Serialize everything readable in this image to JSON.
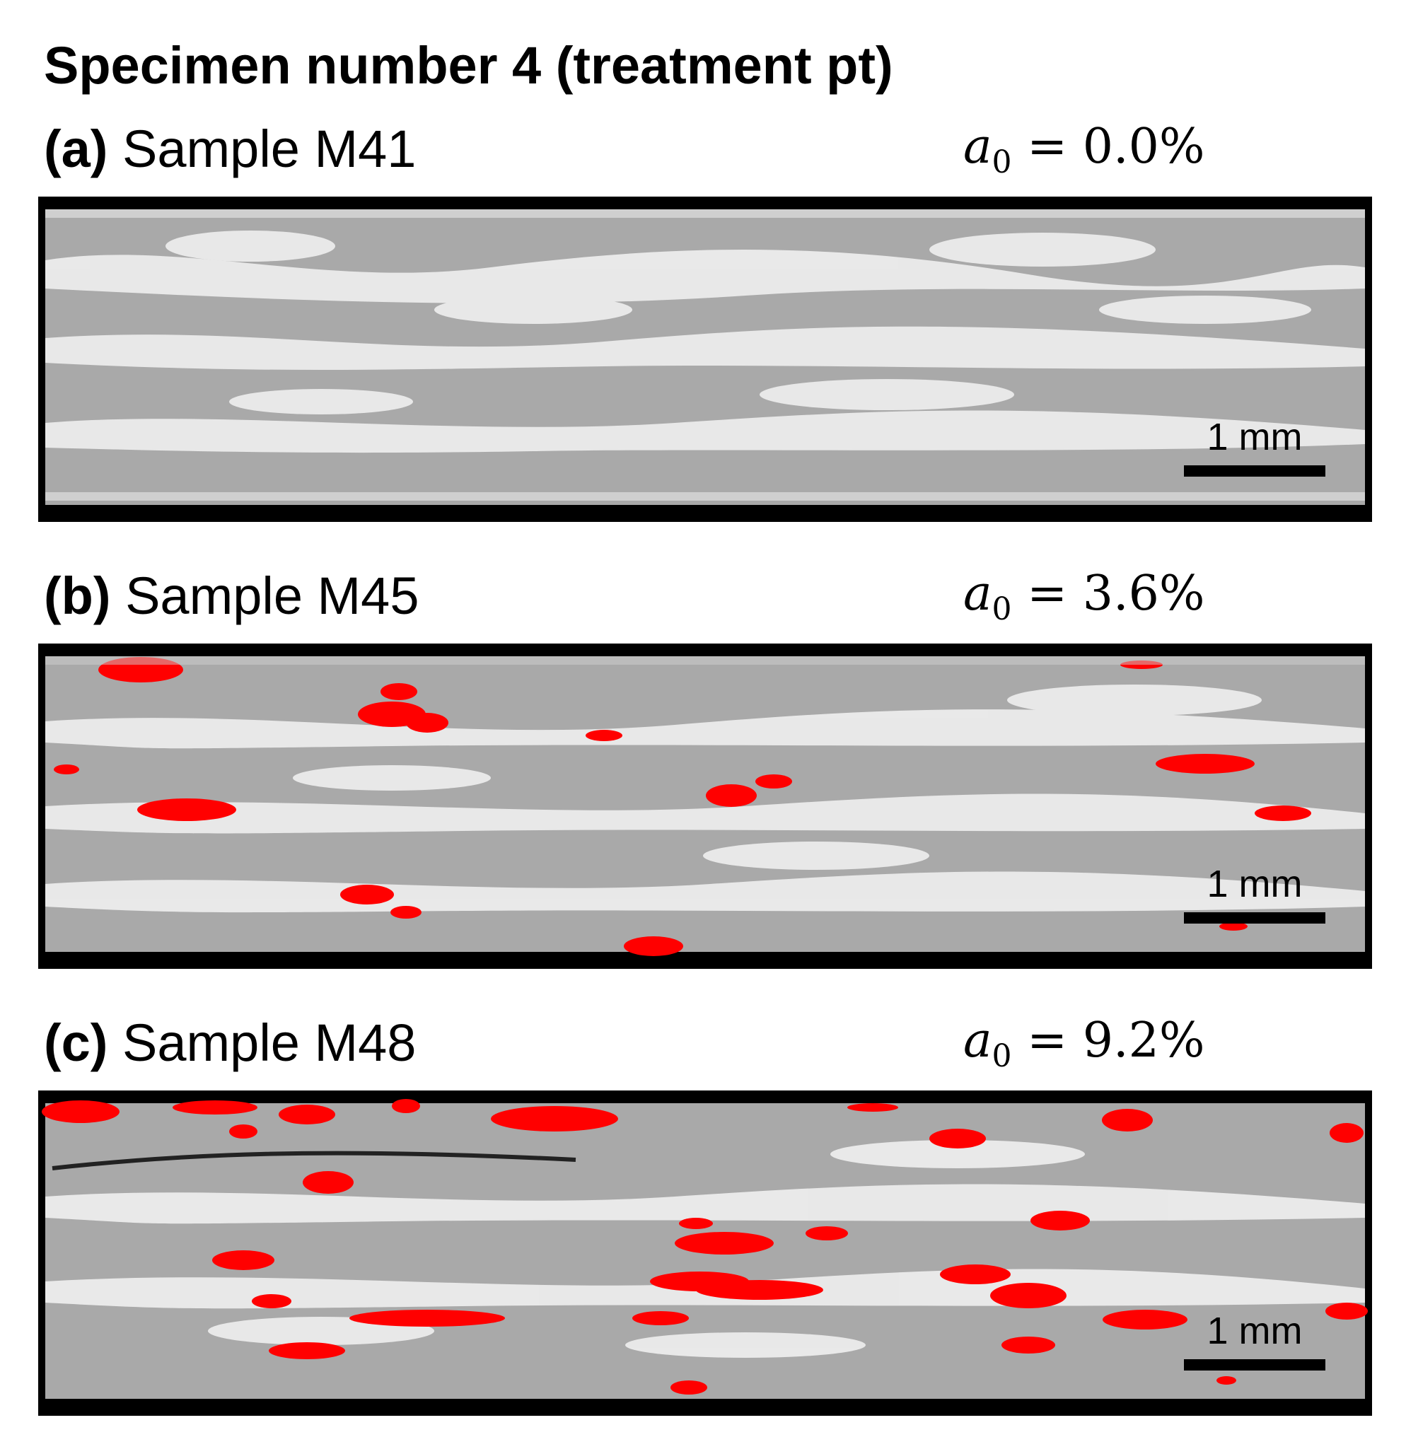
{
  "title": "Specimen number 4 (treatment pt)",
  "panels": [
    {
      "letter": "(a)",
      "sample": "Sample M41",
      "a0_symbol": "a",
      "a0_sub": "0",
      "a0_value": "= 0.0%",
      "scale": "1 mm"
    },
    {
      "letter": "(b)",
      "sample": "Sample M45",
      "a0_symbol": "a",
      "a0_sub": "0",
      "a0_value": "= 3.6%",
      "scale": "1 mm"
    },
    {
      "letter": "(c)",
      "sample": "Sample M48",
      "a0_symbol": "a",
      "a0_sub": "0",
      "a0_value": "= 9.2%",
      "scale": "1 mm"
    }
  ],
  "colors": {
    "background": "#ffffff",
    "frame": "#000000",
    "micrograph": "#a9a9a9",
    "matrix": "#efefef",
    "defect": "#ff0000",
    "scale_bar": "#000000"
  }
}
